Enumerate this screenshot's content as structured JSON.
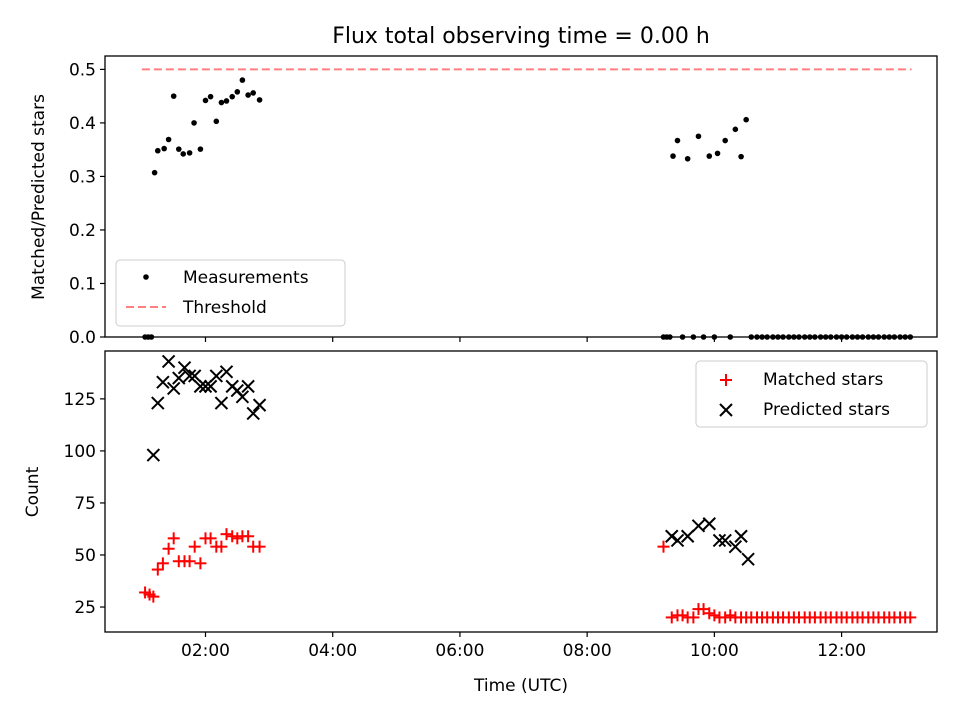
{
  "figure": {
    "title": "Flux total observing time = 0.00 h"
  },
  "chart_data": [
    {
      "type": "scatter",
      "title": "Flux total observing time = 0.00 h",
      "xlabel": "",
      "ylabel": "Matched/Predicted stars",
      "xlim": [
        0.42,
        13.5
      ],
      "ylim": [
        0.0,
        0.525
      ],
      "x_ticks": [
        2,
        4,
        6,
        8,
        10,
        12
      ],
      "y_ticks": [
        0.0,
        0.1,
        0.2,
        0.3,
        0.4,
        0.5
      ],
      "y_tick_labels": [
        "0.0",
        "0.1",
        "0.2",
        "0.3",
        "0.4",
        "0.5"
      ],
      "legend_position": "lower-left",
      "legend": [
        "Measurements",
        "Threshold"
      ],
      "series": [
        {
          "name": "Measurements",
          "color": "#000000",
          "marker": "dot",
          "points": [
            [
              1.05,
              0.0
            ],
            [
              1.1,
              0.0
            ],
            [
              1.15,
              0.0
            ],
            [
              1.2,
              0.307
            ],
            [
              1.25,
              0.348
            ],
            [
              1.35,
              0.352
            ],
            [
              1.42,
              0.369
            ],
            [
              1.5,
              0.45
            ],
            [
              1.58,
              0.351
            ],
            [
              1.65,
              0.342
            ],
            [
              1.75,
              0.344
            ],
            [
              1.82,
              0.4
            ],
            [
              1.92,
              0.351
            ],
            [
              2.0,
              0.442
            ],
            [
              2.08,
              0.449
            ],
            [
              2.17,
              0.403
            ],
            [
              2.25,
              0.438
            ],
            [
              2.33,
              0.441
            ],
            [
              2.42,
              0.449
            ],
            [
              2.5,
              0.458
            ],
            [
              2.58,
              0.48
            ],
            [
              2.67,
              0.452
            ],
            [
              2.75,
              0.456
            ],
            [
              2.85,
              0.443
            ],
            [
              9.2,
              0.0
            ],
            [
              9.25,
              0.0
            ],
            [
              9.3,
              0.0
            ],
            [
              9.35,
              0.338
            ],
            [
              9.42,
              0.367
            ],
            [
              9.5,
              0.0
            ],
            [
              9.58,
              0.333
            ],
            [
              9.67,
              0.0
            ],
            [
              9.75,
              0.375
            ],
            [
              9.83,
              0.0
            ],
            [
              9.92,
              0.338
            ],
            [
              10.0,
              0.0
            ],
            [
              10.05,
              0.343
            ],
            [
              10.17,
              0.367
            ],
            [
              10.25,
              0.0
            ],
            [
              10.33,
              0.388
            ],
            [
              10.42,
              0.337
            ],
            [
              10.5,
              0.406
            ],
            [
              10.58,
              0.0
            ],
            [
              10.67,
              0.0
            ],
            [
              10.75,
              0.0
            ],
            [
              10.83,
              0.0
            ],
            [
              10.92,
              0.0
            ],
            [
              11.0,
              0.0
            ],
            [
              11.08,
              0.0
            ],
            [
              11.17,
              0.0
            ],
            [
              11.25,
              0.0
            ],
            [
              11.33,
              0.0
            ],
            [
              11.42,
              0.0
            ],
            [
              11.5,
              0.0
            ],
            [
              11.58,
              0.0
            ],
            [
              11.67,
              0.0
            ],
            [
              11.75,
              0.0
            ],
            [
              11.83,
              0.0
            ],
            [
              11.92,
              0.0
            ],
            [
              12.0,
              0.0
            ],
            [
              12.08,
              0.0
            ],
            [
              12.17,
              0.0
            ],
            [
              12.25,
              0.0
            ],
            [
              12.33,
              0.0
            ],
            [
              12.42,
              0.0
            ],
            [
              12.5,
              0.0
            ],
            [
              12.58,
              0.0
            ],
            [
              12.67,
              0.0
            ],
            [
              12.75,
              0.0
            ],
            [
              12.83,
              0.0
            ],
            [
              12.92,
              0.0
            ],
            [
              13.0,
              0.0
            ],
            [
              13.08,
              0.0
            ]
          ]
        },
        {
          "name": "Threshold",
          "color": "#ff7f7f",
          "style": "dashed",
          "x": [
            1.0,
            13.1
          ],
          "y": [
            0.5,
            0.5
          ]
        }
      ]
    },
    {
      "type": "scatter",
      "xlabel": "Time (UTC)",
      "ylabel": "Count",
      "xlim": [
        0.42,
        13.5
      ],
      "ylim": [
        13,
        148
      ],
      "x_ticks": [
        2,
        4,
        6,
        8,
        10,
        12
      ],
      "x_tick_labels": [
        "02:00",
        "04:00",
        "06:00",
        "08:00",
        "10:00",
        "12:00"
      ],
      "y_ticks": [
        25,
        50,
        75,
        100,
        125
      ],
      "y_tick_labels": [
        "25",
        "50",
        "75",
        "100",
        "125"
      ],
      "legend_position": "upper-right",
      "legend": [
        "Matched stars",
        "Predicted stars"
      ],
      "series": [
        {
          "name": "Matched stars",
          "color": "#ff0000",
          "marker": "plus",
          "points": [
            [
              1.05,
              32
            ],
            [
              1.12,
              31
            ],
            [
              1.18,
              30
            ],
            [
              1.25,
              43
            ],
            [
              1.33,
              46
            ],
            [
              1.42,
              53
            ],
            [
              1.5,
              58
            ],
            [
              1.58,
              47
            ],
            [
              1.67,
              47
            ],
            [
              1.75,
              47
            ],
            [
              1.83,
              54
            ],
            [
              1.92,
              46
            ],
            [
              2.0,
              58
            ],
            [
              2.08,
              58
            ],
            [
              2.17,
              54
            ],
            [
              2.25,
              54
            ],
            [
              2.33,
              60
            ],
            [
              2.42,
              59
            ],
            [
              2.5,
              58
            ],
            [
              2.58,
              59
            ],
            [
              2.67,
              59
            ],
            [
              2.75,
              54
            ],
            [
              2.85,
              54
            ],
            [
              9.2,
              54
            ],
            [
              9.33,
              20
            ],
            [
              9.42,
              21
            ],
            [
              9.5,
              21
            ],
            [
              9.58,
              20
            ],
            [
              9.67,
              20
            ],
            [
              9.75,
              24
            ],
            [
              9.83,
              24
            ],
            [
              9.92,
              22
            ],
            [
              10.0,
              21
            ],
            [
              10.08,
              20
            ],
            [
              10.17,
              20
            ],
            [
              10.25,
              21
            ],
            [
              10.33,
              20
            ],
            [
              10.42,
              20
            ],
            [
              10.5,
              20
            ],
            [
              10.58,
              20
            ],
            [
              10.67,
              20
            ],
            [
              10.75,
              20
            ],
            [
              10.83,
              20
            ],
            [
              10.92,
              20
            ],
            [
              11.0,
              20
            ],
            [
              11.08,
              20
            ],
            [
              11.17,
              20
            ],
            [
              11.25,
              20
            ],
            [
              11.33,
              20
            ],
            [
              11.42,
              20
            ],
            [
              11.5,
              20
            ],
            [
              11.58,
              20
            ],
            [
              11.67,
              20
            ],
            [
              11.75,
              20
            ],
            [
              11.83,
              20
            ],
            [
              11.92,
              20
            ],
            [
              12.0,
              20
            ],
            [
              12.08,
              20
            ],
            [
              12.17,
              20
            ],
            [
              12.25,
              20
            ],
            [
              12.33,
              20
            ],
            [
              12.42,
              20
            ],
            [
              12.5,
              20
            ],
            [
              12.58,
              20
            ],
            [
              12.67,
              20
            ],
            [
              12.75,
              20
            ],
            [
              12.83,
              20
            ],
            [
              12.92,
              20
            ],
            [
              13.0,
              20
            ],
            [
              13.08,
              20
            ]
          ]
        },
        {
          "name": "Predicted stars",
          "color": "#000000",
          "marker": "x",
          "points": [
            [
              1.18,
              98
            ],
            [
              1.25,
              123
            ],
            [
              1.33,
              133
            ],
            [
              1.42,
              143
            ],
            [
              1.5,
              130
            ],
            [
              1.58,
              135
            ],
            [
              1.67,
              140
            ],
            [
              1.75,
              136
            ],
            [
              1.83,
              136
            ],
            [
              1.92,
              131
            ],
            [
              2.0,
              131
            ],
            [
              2.08,
              131
            ],
            [
              2.17,
              136
            ],
            [
              2.25,
              123
            ],
            [
              2.33,
              138
            ],
            [
              2.42,
              131
            ],
            [
              2.5,
              129
            ],
            [
              2.58,
              126
            ],
            [
              2.67,
              131
            ],
            [
              2.75,
              118
            ],
            [
              2.85,
              122
            ],
            [
              9.33,
              59
            ],
            [
              9.42,
              57
            ],
            [
              9.58,
              59
            ],
            [
              9.75,
              64
            ],
            [
              9.92,
              65
            ],
            [
              10.08,
              57
            ],
            [
              10.17,
              57
            ],
            [
              10.33,
              54
            ],
            [
              10.42,
              59
            ],
            [
              10.53,
              48
            ]
          ]
        }
      ]
    }
  ]
}
